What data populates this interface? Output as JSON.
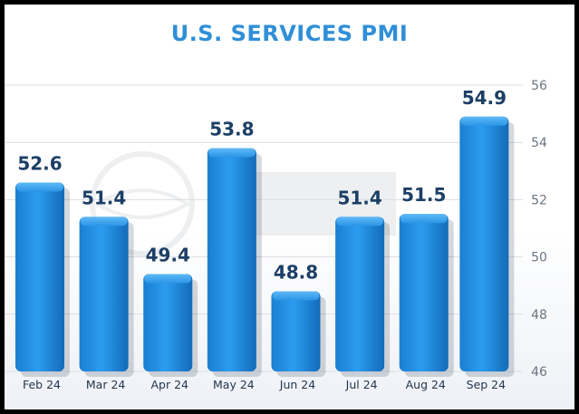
{
  "chart_data": {
    "type": "bar",
    "title": "U.S. SERVICES PMI",
    "categories": [
      "Feb 24",
      "Mar 24",
      "Apr 24",
      "May 24",
      "Jun 24",
      "Jul 24",
      "Aug 24",
      "Sep 24"
    ],
    "values": [
      52.6,
      51.4,
      49.4,
      53.8,
      48.8,
      51.4,
      51.5,
      54.9
    ],
    "data_labels": [
      "52.6",
      "51.4",
      "49.4",
      "53.8",
      "48.8",
      "51.4",
      "51.5",
      "54.9"
    ],
    "ylim": [
      46,
      56
    ],
    "yticks": [
      46,
      48,
      50,
      52,
      54,
      56
    ],
    "y_axis_position": "right",
    "grid": true,
    "bar_color": "#1f8ee6",
    "title_color": "#2f8fd8"
  }
}
